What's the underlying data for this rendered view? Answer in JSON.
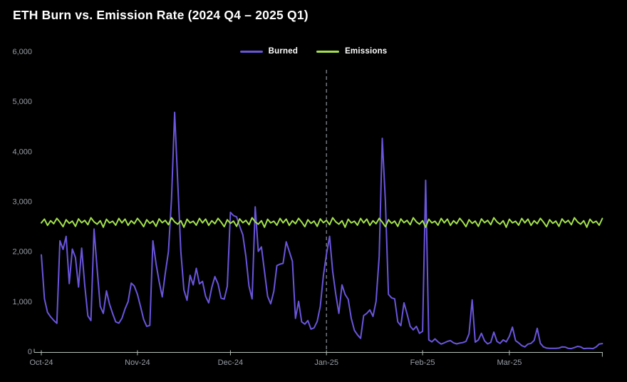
{
  "page": {
    "background": "#000000"
  },
  "header": {
    "title": "ETH Burn vs. Emission Rate (2024 Q4 – 2025 Q1)"
  },
  "legend": [
    {
      "label": "Burned",
      "color": "#6a55dd"
    },
    {
      "label": "Emissions",
      "color": "#a3e24c"
    }
  ],
  "chart_data": {
    "type": "line",
    "title": "ETH Burn vs. Emission Rate (2024 Q4 – 2025 Q1)",
    "x_unit": "day",
    "x_range_days": 182,
    "ylim": [
      0,
      6000
    ],
    "grid": false,
    "legend_position": "top-center",
    "y_ticks": [
      {
        "v": 0,
        "label": "0"
      },
      {
        "v": 1000,
        "label": "1,000"
      },
      {
        "v": 2000,
        "label": "2,000"
      },
      {
        "v": 3000,
        "label": "3,000"
      },
      {
        "v": 4000,
        "label": "4,000"
      },
      {
        "v": 5000,
        "label": "5,000"
      },
      {
        "v": 6000,
        "label": "6,000"
      }
    ],
    "x_ticks": [
      {
        "d": 0,
        "label": "Oct-24"
      },
      {
        "d": 31,
        "label": "Nov-24"
      },
      {
        "d": 61,
        "label": "Dec-24"
      },
      {
        "d": 92,
        "label": "Jan-25"
      },
      {
        "d": 123,
        "label": "Feb-25"
      },
      {
        "d": 151,
        "label": "Mar-25"
      }
    ],
    "marker": {
      "day_index": 92,
      "at_label": "Jan-25",
      "style": "dashed-vertical"
    },
    "series": [
      {
        "name": "Burned",
        "color": "#6a55dd",
        "values": [
          1930,
          1050,
          780,
          690,
          620,
          560,
          2210,
          2040,
          2300,
          1355,
          2045,
          1875,
          1285,
          2065,
          1330,
          710,
          615,
          2445,
          1655,
          900,
          760,
          1210,
          945,
          755,
          590,
          565,
          660,
          850,
          995,
          1365,
          1305,
          1140,
          900,
          640,
          500,
          520,
          2210,
          1755,
          1400,
          1090,
          1565,
          1995,
          3040,
          4780,
          3400,
          2000,
          1230,
          1020,
          1520,
          1330,
          1660,
          1350,
          1400,
          1100,
          970,
          1280,
          1495,
          1350,
          1065,
          1045,
          1300,
          2780,
          2715,
          2690,
          2500,
          2330,
          1900,
          1300,
          1050,
          2890,
          2000,
          2090,
          1600,
          1100,
          950,
          1200,
          1715,
          1745,
          1760,
          2190,
          2000,
          1800,
          660,
          1000,
          590,
          545,
          615,
          445,
          470,
          600,
          900,
          1515,
          1945,
          2300,
          1600,
          1140,
          760,
          1330,
          1140,
          1040,
          660,
          420,
          330,
          260,
          715,
          760,
          830,
          700,
          1000,
          1900,
          4260,
          3000,
          1140,
          1070,
          1050,
          590,
          515,
          970,
          750,
          500,
          430,
          500,
          360,
          400,
          3420,
          230,
          190,
          250,
          190,
          145,
          170,
          200,
          215,
          170,
          150,
          165,
          175,
          200,
          350,
          1030,
          185,
          230,
          360,
          210,
          150,
          180,
          385,
          200,
          160,
          230,
          190,
          300,
          485,
          215,
          170,
          115,
          90,
          145,
          160,
          220,
          460,
          160,
          90,
          65,
          60,
          60,
          60,
          65,
          90,
          85,
          60,
          55,
          75,
          100,
          90,
          55,
          60,
          60,
          55,
          90,
          145,
          155
        ]
      },
      {
        "name": "Emissions",
        "color": "#a3e24c",
        "values": [
          2570,
          2645,
          2520,
          2612,
          2552,
          2660,
          2585,
          2492,
          2632,
          2560,
          2605,
          2500,
          2650,
          2572,
          2620,
          2532,
          2672,
          2590,
          2542,
          2612,
          2482,
          2642,
          2570,
          2602,
          2522,
          2658,
          2570,
          2645,
          2520,
          2612,
          2552,
          2660,
          2585,
          2492,
          2632,
          2560,
          2605,
          2500,
          2650,
          2572,
          2620,
          2532,
          2672,
          2590,
          2542,
          2612,
          2482,
          2642,
          2570,
          2602,
          2522,
          2658,
          2570,
          2645,
          2520,
          2612,
          2552,
          2660,
          2585,
          2492,
          2632,
          2560,
          2605,
          2500,
          2650,
          2572,
          2620,
          2532,
          2672,
          2590,
          2542,
          2612,
          2482,
          2642,
          2570,
          2602,
          2522,
          2658,
          2570,
          2645,
          2520,
          2612,
          2552,
          2660,
          2585,
          2492,
          2632,
          2560,
          2605,
          2500,
          2650,
          2572,
          2620,
          2532,
          2672,
          2590,
          2542,
          2612,
          2482,
          2642,
          2570,
          2602,
          2522,
          2658,
          2570,
          2645,
          2520,
          2612,
          2552,
          2660,
          2585,
          2492,
          2632,
          2560,
          2605,
          2500,
          2650,
          2572,
          2620,
          2532,
          2672,
          2590,
          2542,
          2612,
          2482,
          2642,
          2570,
          2602,
          2522,
          2658,
          2570,
          2645,
          2520,
          2612,
          2552,
          2660,
          2585,
          2492,
          2632,
          2560,
          2605,
          2500,
          2650,
          2572,
          2620,
          2532,
          2672,
          2590,
          2542,
          2612,
          2482,
          2642,
          2570,
          2602,
          2522,
          2658,
          2570,
          2645,
          2520,
          2612,
          2552,
          2660,
          2585,
          2492,
          2632,
          2560,
          2605,
          2500,
          2650,
          2572,
          2620,
          2532,
          2672,
          2590,
          2542,
          2612,
          2482,
          2642,
          2570,
          2602,
          2522,
          2658
        ]
      }
    ]
  },
  "colors": {
    "background": "#000000",
    "title_text": "#ffffff",
    "legend_text": "#ffffff",
    "axis_text": "#979ca4",
    "axis_line": "#b5bfb7",
    "marker_line": "#9aa1a8"
  }
}
